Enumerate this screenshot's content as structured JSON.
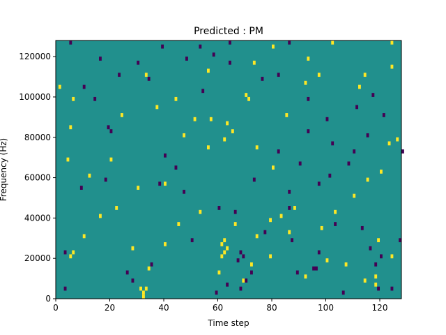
{
  "chart_data": {
    "type": "heatmap",
    "title": "Predicted : PM",
    "xlabel": "Time step",
    "ylabel": "Frequency (Hz)",
    "xlim": [
      0,
      128
    ],
    "ylim": [
      0,
      128000
    ],
    "x_ticks": [
      0,
      20,
      40,
      60,
      80,
      100,
      120
    ],
    "y_ticks": [
      0,
      20000,
      40000,
      60000,
      80000,
      100000,
      120000
    ],
    "x_tick_labels": [
      "0",
      "20",
      "40",
      "60",
      "80",
      "100",
      "120"
    ],
    "y_tick_labels": [
      "0",
      "20000",
      "40000",
      "60000",
      "80000",
      "100000",
      "120000"
    ],
    "grid": false,
    "colormap": "viridis",
    "colors": {
      "background": "#21908d",
      "high": "#fde725",
      "low": "#440154"
    },
    "cell_size": {
      "time_step": 1,
      "frequency_hz": 2000
    },
    "high_cells": [
      [
        31,
        2
      ],
      [
        32,
        0
      ],
      [
        32,
        1
      ],
      [
        33,
        2
      ],
      [
        61,
        10
      ],
      [
        62,
        11
      ],
      [
        63,
        12
      ],
      [
        61,
        13
      ],
      [
        62,
        14
      ],
      [
        72,
        8
      ],
      [
        74,
        15
      ],
      [
        79,
        19
      ],
      [
        83,
        20
      ],
      [
        5,
        10
      ],
      [
        6,
        11
      ],
      [
        28,
        12
      ],
      [
        40,
        13
      ],
      [
        45,
        18
      ],
      [
        4,
        34
      ],
      [
        12,
        30
      ],
      [
        20,
        34
      ],
      [
        56,
        37
      ],
      [
        62,
        39
      ],
      [
        65,
        41
      ],
      [
        74,
        37
      ],
      [
        80,
        32
      ],
      [
        88,
        22
      ],
      [
        98,
        17
      ],
      [
        103,
        21
      ],
      [
        110,
        25
      ],
      [
        115,
        29
      ],
      [
        120,
        31
      ],
      [
        123,
        38
      ],
      [
        126,
        39
      ],
      [
        33,
        55
      ],
      [
        56,
        56
      ],
      [
        73,
        58
      ],
      [
        80,
        62
      ],
      [
        93,
        59
      ],
      [
        102,
        63
      ],
      [
        1,
        52
      ],
      [
        6,
        49
      ],
      [
        24,
        45
      ],
      [
        37,
        47
      ],
      [
        47,
        40
      ],
      [
        51,
        44
      ],
      [
        57,
        44
      ],
      [
        63,
        43
      ],
      [
        71,
        49
      ],
      [
        85,
        45
      ],
      [
        97,
        55
      ],
      [
        112,
        52
      ],
      [
        124,
        57
      ],
      [
        107,
        8
      ],
      [
        118,
        5
      ],
      [
        124,
        10
      ],
      [
        16,
        20
      ],
      [
        22,
        22
      ],
      [
        30,
        27
      ],
      [
        40,
        28
      ],
      [
        53,
        21
      ],
      [
        66,
        18
      ],
      [
        86,
        16
      ],
      [
        92,
        5
      ],
      [
        114,
        4
      ],
      [
        118,
        3
      ],
      [
        10,
        15
      ],
      [
        34,
        7
      ],
      [
        60,
        6
      ],
      [
        69,
        4
      ],
      [
        79,
        10
      ],
      [
        100,
        9
      ],
      [
        119,
        14
      ],
      [
        5,
        42
      ],
      [
        44,
        49
      ],
      [
        70,
        50
      ],
      [
        92,
        53
      ],
      [
        114,
        55
      ],
      [
        124,
        63
      ]
    ],
    "low_cells": [
      [
        19,
        42
      ],
      [
        20,
        41
      ],
      [
        26,
        6
      ],
      [
        67,
        9
      ],
      [
        68,
        11
      ],
      [
        69,
        10
      ],
      [
        70,
        4
      ],
      [
        68,
        2
      ],
      [
        96,
        7
      ],
      [
        116,
        12
      ],
      [
        124,
        2
      ],
      [
        35,
        8
      ],
      [
        50,
        14
      ],
      [
        66,
        21
      ],
      [
        73,
        29
      ],
      [
        86,
        26
      ],
      [
        97,
        28
      ],
      [
        108,
        33
      ],
      [
        115,
        40
      ],
      [
        121,
        45
      ],
      [
        10,
        52
      ],
      [
        30,
        58
      ],
      [
        39,
        62
      ],
      [
        48,
        59
      ],
      [
        58,
        60
      ],
      [
        76,
        54
      ],
      [
        86,
        63
      ],
      [
        93,
        41
      ],
      [
        100,
        44
      ],
      [
        111,
        47
      ],
      [
        117,
        50
      ],
      [
        5,
        63
      ],
      [
        16,
        59
      ],
      [
        34,
        54
      ],
      [
        54,
        51
      ],
      [
        64,
        63
      ],
      [
        82,
        36
      ],
      [
        90,
        33
      ],
      [
        101,
        30
      ],
      [
        110,
        36
      ],
      [
        128,
        36
      ],
      [
        3,
        11
      ],
      [
        9,
        27
      ],
      [
        18,
        29
      ],
      [
        44,
        32
      ],
      [
        60,
        22
      ],
      [
        86,
        22
      ],
      [
        103,
        18
      ],
      [
        118,
        8
      ],
      [
        127,
        14
      ],
      [
        59,
        1
      ],
      [
        63,
        3
      ],
      [
        72,
        6
      ],
      [
        89,
        6
      ],
      [
        95,
        7
      ],
      [
        106,
        1
      ],
      [
        119,
        2
      ],
      [
        28,
        4
      ],
      [
        38,
        28
      ],
      [
        47,
        26
      ],
      [
        77,
        16
      ],
      [
        87,
        14
      ],
      [
        97,
        11
      ],
      [
        113,
        17
      ],
      [
        120,
        10
      ],
      [
        3,
        2
      ],
      [
        14,
        49
      ],
      [
        23,
        55
      ],
      [
        40,
        35
      ],
      [
        53,
        62
      ],
      [
        64,
        58
      ],
      [
        82,
        55
      ],
      [
        93,
        49
      ],
      [
        102,
        38
      ]
    ]
  }
}
